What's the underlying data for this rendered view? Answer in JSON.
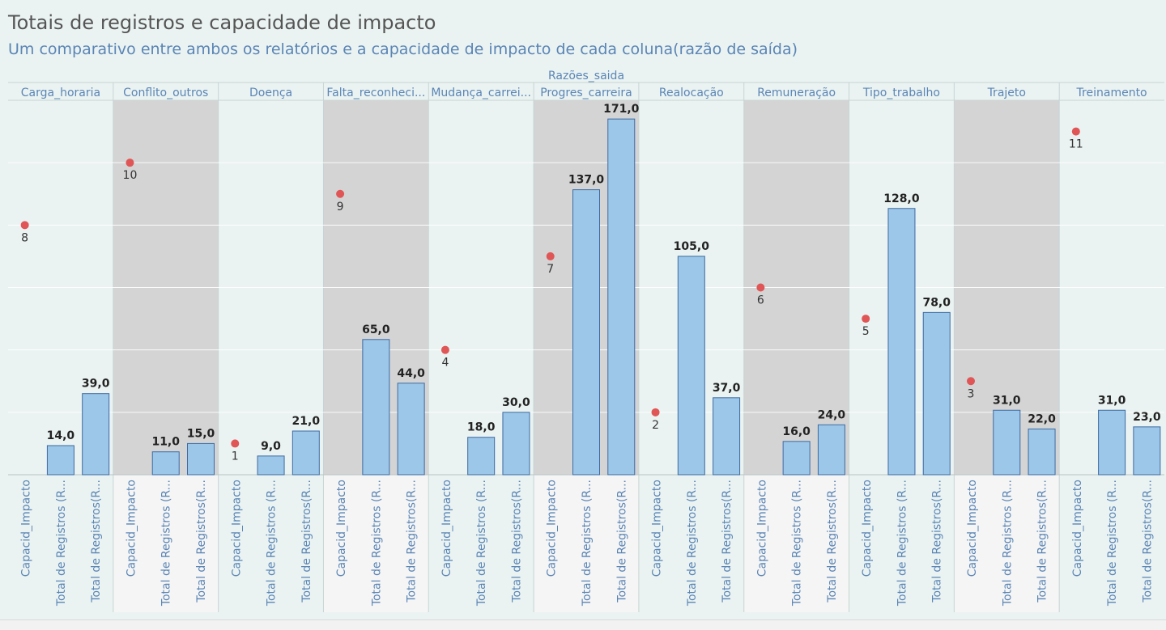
{
  "title": "Totais de registros e capacidade de impacto",
  "subtitle": "Um comparativo entre ambos os relatórios e a capacidade de impacto de cada coluna(razão de saída)",
  "chart_data": {
    "type": "bar",
    "column_header": "Razões_saida",
    "measure_labels": [
      "Capacid_Impacto",
      "Total de Registros (R...",
      "Total de Registros(R..."
    ],
    "capacid_ylim": [
      0,
      12
    ],
    "registros_ylim": [
      0,
      180
    ],
    "categories": [
      {
        "label": "Carga_horaria",
        "capacid": 8,
        "total1": 14,
        "total2": 39
      },
      {
        "label": "Conflito_outros",
        "capacid": 10,
        "total1": 11,
        "total2": 15
      },
      {
        "label": "Doença",
        "capacid": 1,
        "total1": 9,
        "total2": 21
      },
      {
        "label": "Falta_reconheci...",
        "capacid": 9,
        "total1": 65,
        "total2": 44
      },
      {
        "label": "Mudança_carrei...",
        "capacid": 4,
        "total1": 18,
        "total2": 30
      },
      {
        "label": "Progres_carreira",
        "capacid": 7,
        "total1": 137,
        "total2": 171
      },
      {
        "label": "Realocação",
        "capacid": 2,
        "total1": 105,
        "total2": 37
      },
      {
        "label": "Remuneração",
        "capacid": 6,
        "total1": 16,
        "total2": 24
      },
      {
        "label": "Tipo_trabalho",
        "capacid": 5,
        "total1": 128,
        "total2": 78
      },
      {
        "label": "Trajeto",
        "capacid": 3,
        "total1": 31,
        "total2": 22
      },
      {
        "label": "Treinamento",
        "capacid": 11,
        "total1": 31,
        "total2": 23
      }
    ],
    "colors": {
      "bar": "#9dc7e8",
      "bar_stroke": "#3c6aa2",
      "dot": "#e05555",
      "band_light": "#eaf3f2",
      "band_dark": "#d4d4d4",
      "axis_light": "#eaf3f2",
      "axis_dark": "#f5f5f5",
      "label_text": "#5b85b5"
    },
    "value_format": "decimal_comma_1"
  }
}
